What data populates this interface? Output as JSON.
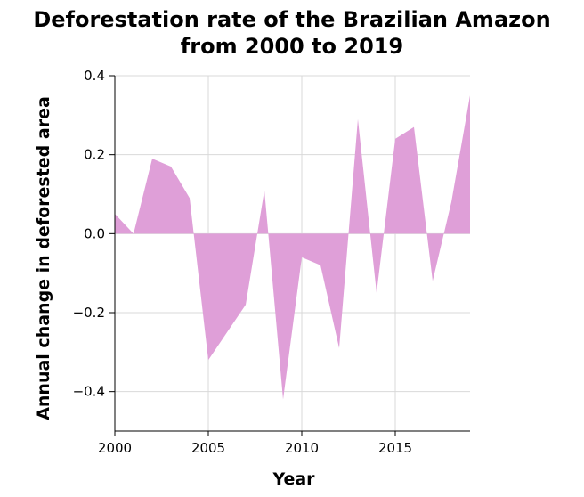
{
  "chart_data": {
    "type": "area",
    "title_lines": [
      "Deforestation rate of the Brazilian Amazon",
      "from 2000 to 2019"
    ],
    "xlabel": "Year",
    "ylabel": "Annual change in deforested area",
    "xlim": [
      2000,
      2019
    ],
    "ylim": [
      -0.5,
      0.4
    ],
    "x_ticks": [
      2000,
      2005,
      2010,
      2015
    ],
    "x_tick_labels": [
      "2000",
      "2005",
      "2010",
      "2015"
    ],
    "y_ticks": [
      -0.4,
      -0.2,
      0.0,
      0.2,
      0.4
    ],
    "y_tick_labels": [
      "−0.4",
      "−0.2",
      "0.0",
      "0.2",
      "0.4"
    ],
    "grid": true,
    "legend": false,
    "fill_color": "#df9fd8",
    "x": [
      2000,
      2001,
      2002,
      2003,
      2004,
      2005,
      2006,
      2007,
      2008,
      2009,
      2010,
      2011,
      2012,
      2013,
      2014,
      2015,
      2016,
      2017,
      2018,
      2019
    ],
    "values": [
      0.05,
      0.0,
      0.19,
      0.17,
      0.09,
      -0.32,
      -0.25,
      -0.18,
      0.11,
      -0.42,
      -0.06,
      -0.08,
      -0.29,
      0.29,
      -0.15,
      0.24,
      0.27,
      -0.12,
      0.08,
      0.35
    ]
  }
}
